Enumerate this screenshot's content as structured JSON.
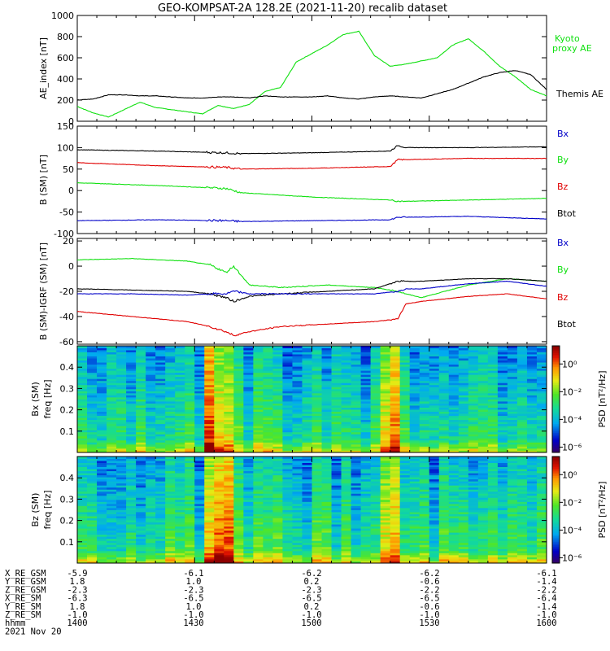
{
  "title": "GEO-KOMPSAT-2A 128.2E (2021-11-20) recalib dataset",
  "colors": {
    "black": "#000000",
    "red": "#e00000",
    "green": "#10e010",
    "blue": "#0000c8"
  },
  "chart_data": [
    {
      "type": "line",
      "ylabel": "AE_index [nT]",
      "ylim": [
        0,
        1000
      ],
      "yticks": [
        0,
        200,
        400,
        600,
        800,
        1000
      ],
      "xlim": [
        0,
        120
      ],
      "series": [
        {
          "name": "Kyoto proxy AE",
          "color": "#10e010",
          "x": [
            0,
            4,
            8,
            12,
            16,
            20,
            24,
            28,
            32,
            36,
            40,
            44,
            48,
            52,
            56,
            60,
            64,
            68,
            72,
            76,
            80,
            84,
            88,
            92,
            96,
            100,
            104,
            108,
            112,
            116,
            120
          ],
          "values": [
            140,
            80,
            40,
            110,
            180,
            130,
            110,
            90,
            70,
            150,
            120,
            160,
            280,
            320,
            560,
            640,
            720,
            820,
            850,
            620,
            520,
            540,
            570,
            600,
            720,
            780,
            660,
            520,
            420,
            300,
            240
          ]
        },
        {
          "name": "Themis AE",
          "color": "#000000",
          "x": [
            0,
            4,
            8,
            12,
            16,
            20,
            24,
            28,
            32,
            36,
            40,
            44,
            48,
            52,
            56,
            60,
            64,
            68,
            72,
            76,
            80,
            84,
            88,
            92,
            96,
            100,
            104,
            108,
            112,
            116,
            120
          ],
          "values": [
            200,
            210,
            250,
            250,
            240,
            240,
            230,
            220,
            220,
            230,
            230,
            220,
            240,
            230,
            230,
            230,
            240,
            220,
            210,
            230,
            240,
            230,
            220,
            260,
            300,
            360,
            420,
            460,
            480,
            440,
            300
          ]
        }
      ],
      "annotations": [
        "Kyoto proxy AE",
        "Themis AE"
      ]
    },
    {
      "type": "line",
      "ylabel": "B (SM) [nT]",
      "ylim": [
        -100,
        150
      ],
      "yticks": [
        -100,
        -50,
        0,
        50,
        100,
        150
      ],
      "xlim": [
        0,
        120
      ],
      "series": [
        {
          "name": "Btot",
          "color": "#000000",
          "x": [
            0,
            20,
            38,
            42,
            60,
            80,
            82,
            84,
            100,
            120
          ],
          "values": [
            95,
            92,
            88,
            86,
            88,
            92,
            105,
            100,
            100,
            102
          ]
        },
        {
          "name": "By",
          "color": "#e00000",
          "x": [
            0,
            20,
            38,
            42,
            60,
            80,
            82,
            84,
            100,
            120
          ],
          "values": [
            65,
            58,
            54,
            50,
            52,
            56,
            72,
            72,
            75,
            75
          ]
        },
        {
          "name": "Bz",
          "color": "#10e010",
          "x": [
            0,
            20,
            38,
            42,
            60,
            80,
            82,
            84,
            100,
            120
          ],
          "values": [
            18,
            12,
            5,
            -5,
            -15,
            -22,
            -25,
            -25,
            -22,
            -18
          ]
        },
        {
          "name": "Bx",
          "color": "#0000c8",
          "x": [
            0,
            20,
            38,
            42,
            60,
            80,
            82,
            84,
            100,
            120
          ],
          "values": [
            -70,
            -68,
            -70,
            -72,
            -70,
            -68,
            -62,
            -62,
            -60,
            -66
          ]
        }
      ],
      "legend": [
        "Bx",
        "By",
        "Bz",
        "Btot"
      ]
    },
    {
      "type": "line",
      "ylabel": "B (SM)-IGRF (SM) [nT]",
      "ylim": [
        -62,
        22
      ],
      "yticks": [
        -60,
        -40,
        -20,
        0,
        20
      ],
      "xlim": [
        0,
        120
      ],
      "series": [
        {
          "name": "Bz",
          "color": "#10e010",
          "x": [
            0,
            14,
            28,
            34,
            38,
            40,
            44,
            52,
            64,
            76,
            82,
            84,
            88,
            100,
            110,
            120
          ],
          "values": [
            5,
            6,
            4,
            1,
            -5,
            0,
            -15,
            -17,
            -15,
            -17,
            -20,
            -22,
            -25,
            -15,
            -10,
            -12
          ]
        },
        {
          "name": "Btot",
          "color": "#000000",
          "x": [
            0,
            14,
            28,
            34,
            38,
            40,
            44,
            52,
            64,
            76,
            82,
            84,
            88,
            100,
            110,
            120
          ],
          "values": [
            -18,
            -19,
            -20,
            -22,
            -25,
            -28,
            -24,
            -22,
            -20,
            -18,
            -12,
            -12,
            -12,
            -10,
            -10,
            -12
          ]
        },
        {
          "name": "Bx",
          "color": "#0000c8",
          "x": [
            0,
            14,
            28,
            34,
            38,
            40,
            44,
            52,
            64,
            76,
            82,
            84,
            88,
            100,
            110,
            120
          ],
          "values": [
            -22,
            -22,
            -23,
            -22,
            -22,
            -20,
            -22,
            -22,
            -22,
            -22,
            -20,
            -18,
            -18,
            -14,
            -12,
            -16
          ]
        },
        {
          "name": "By",
          "color": "#e00000",
          "x": [
            0,
            14,
            28,
            34,
            38,
            40,
            44,
            52,
            64,
            76,
            82,
            84,
            88,
            100,
            110,
            120
          ],
          "values": [
            -36,
            -40,
            -44,
            -48,
            -52,
            -55,
            -52,
            -48,
            -46,
            -44,
            -42,
            -30,
            -28,
            -24,
            -22,
            -26
          ]
        }
      ],
      "legend": [
        "Bx",
        "By",
        "Bz",
        "Btot"
      ]
    },
    {
      "type": "heatmap",
      "ylabel": "Bx (SM) freq [Hz]",
      "ylim": [
        0,
        0.5
      ],
      "yticks": [
        0.1,
        0.2,
        0.3,
        0.4
      ],
      "colorbar": {
        "label": "PSD [nT²/Hz]",
        "ticks": [
          "10⁰",
          "10⁻²",
          "10⁻⁴",
          "10⁻⁶"
        ]
      }
    },
    {
      "type": "heatmap",
      "ylabel": "Bz (SM) freq [Hz]",
      "ylim": [
        0,
        0.5
      ],
      "yticks": [
        0.1,
        0.2,
        0.3,
        0.4
      ],
      "colorbar": {
        "label": "PSD [nT²/Hz]",
        "ticks": [
          "10⁰",
          "10⁻²",
          "10⁻⁴",
          "10⁻⁶"
        ]
      }
    }
  ],
  "footer": {
    "rows": [
      {
        "label": "X_RE_GSM",
        "values": [
          "-5.9",
          "-6.1",
          "-6.2",
          "-6.2",
          "-6.1"
        ]
      },
      {
        "label": "Y_RE_GSM",
        "values": [
          "1.8",
          "1.0",
          "0.2",
          "-0.6",
          "-1.4"
        ]
      },
      {
        "label": "Z_RE_GSM",
        "values": [
          "-2.3",
          "-2.3",
          "-2.3",
          "-2.2",
          "-2.2"
        ]
      },
      {
        "label": "X_RE_SM",
        "values": [
          "-6.3",
          "-6.5",
          "-6.5",
          "-6.5",
          "-6.4"
        ]
      },
      {
        "label": "Y_RE_SM",
        "values": [
          "1.8",
          "1.0",
          "0.2",
          "-0.6",
          "-1.4"
        ]
      },
      {
        "label": "Z_RE_SM",
        "values": [
          "-1.0",
          "-1.0",
          "-1.0",
          "-1.0",
          "-1.0"
        ]
      },
      {
        "label": "hhmm",
        "values": [
          "1400",
          "1430",
          "1500",
          "1530",
          "1600"
        ]
      }
    ],
    "date": "2021 Nov 20"
  }
}
